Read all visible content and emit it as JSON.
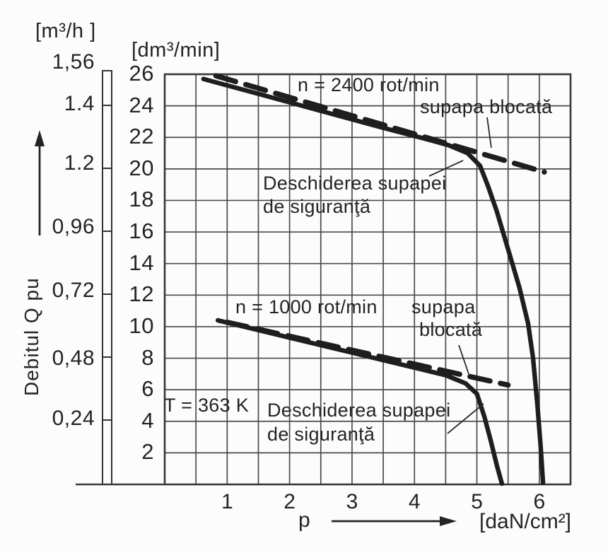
{
  "chart_data": {
    "type": "line",
    "grid": true,
    "x_axis": {
      "symbol": "p",
      "unit": "[daN/cm²]",
      "ticks": [
        1,
        2,
        3,
        4,
        5,
        6
      ],
      "range": [
        0,
        6.5
      ],
      "grid_step": 0.5
    },
    "y_axis_primary": {
      "unit": "[dm³/min]",
      "ticks": [
        26,
        24,
        22,
        20,
        18,
        16,
        14,
        12,
        10,
        8,
        6,
        4,
        2
      ],
      "range": [
        0,
        26
      ],
      "grid_step": 2
    },
    "y_axis_secondary": {
      "unit": "[m³/h ]",
      "axis_title": "Debitul Q pu",
      "ticks": [
        "1,56",
        "1.4",
        "1.2",
        "0,96",
        "0,72",
        "0,48",
        "0,24"
      ]
    },
    "annotations": {
      "n2400": "n = 2400 rot/min",
      "supapa_blocata_2400": "supapa blocată",
      "deschiderea_2400_line1": "Deschiderea supapei",
      "deschiderea_2400_line2": "de siguranţă",
      "n1000": "n = 1000 rot/min",
      "supapa_1000": "supapa",
      "blocata_1000": "blocată",
      "temperature": "T = 363 K",
      "deschiderea_1000_line1": "Deschiderea supapei",
      "deschiderea_1000_line2": "de siguranţă"
    },
    "series": [
      {
        "name": "n = 2400 rot/min — supapa blocată",
        "rpm": 2400,
        "style": "dashed",
        "points": [
          [
            0.82,
            25.9
          ],
          [
            6.08,
            19.8
          ]
        ]
      },
      {
        "name": "n = 2400 rot/min — deschiderea supapei de siguranţă",
        "rpm": 2400,
        "style": "solid",
        "points": [
          [
            0.62,
            25.7
          ],
          [
            1.5,
            24.76
          ],
          [
            2.5,
            23.68
          ],
          [
            3.5,
            22.6
          ],
          [
            4.2,
            21.88
          ],
          [
            4.55,
            21.5
          ],
          [
            4.85,
            21.0
          ],
          [
            5.05,
            20.2
          ],
          [
            5.18,
            18.9
          ],
          [
            5.32,
            17.3
          ],
          [
            5.5,
            14.9
          ],
          [
            5.68,
            12.5
          ],
          [
            5.82,
            10.2
          ],
          [
            5.9,
            8.0
          ],
          [
            5.97,
            5.0
          ],
          [
            6.02,
            2.5
          ],
          [
            6.06,
            0.1
          ]
        ]
      },
      {
        "name": "n = 1000 rot/min — supapa blocată",
        "rpm": 1000,
        "style": "dashed",
        "points": [
          [
            1.0,
            10.28
          ],
          [
            5.5,
            6.3
          ]
        ]
      },
      {
        "name": "n = 1000 rot/min — deschiderea supapei de siguranţă",
        "rpm": 1000,
        "style": "solid",
        "points": [
          [
            0.85,
            10.4
          ],
          [
            2.0,
            9.3
          ],
          [
            3.0,
            8.35
          ],
          [
            4.0,
            7.4
          ],
          [
            4.5,
            6.92
          ],
          [
            4.82,
            6.4
          ],
          [
            5.0,
            5.75
          ],
          [
            5.12,
            4.3
          ],
          [
            5.22,
            2.8
          ],
          [
            5.32,
            1.2
          ],
          [
            5.4,
            0.05
          ]
        ]
      }
    ],
    "colors": {
      "curve": "#1e1e1e",
      "grid": "#4a4a4a",
      "text": "#242424",
      "background": "#fcfcfc"
    }
  }
}
